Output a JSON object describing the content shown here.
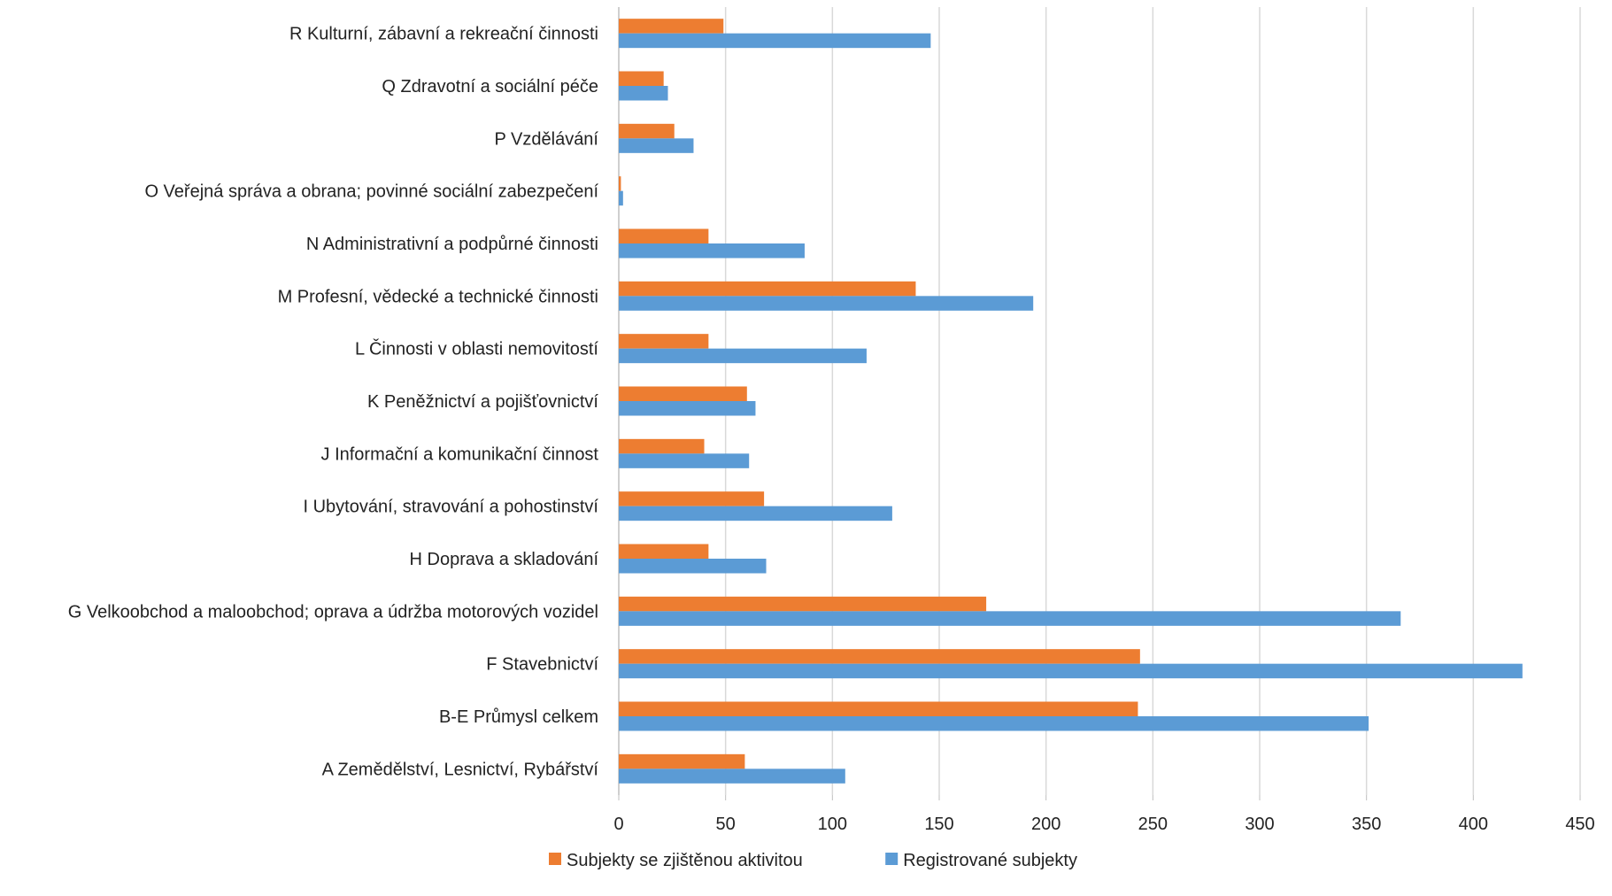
{
  "chart_data": {
    "type": "bar",
    "orientation": "horizontal",
    "categories": [
      "R Kulturní, zábavní a rekreační činnosti",
      "Q Zdravotní a sociální péče",
      "P Vzdělávání",
      "O Veřejná správa a obrana; povinné sociální zabezpečení",
      "N Administrativní a podpůrné činnosti",
      "M Profesní, vědecké a technické činnosti",
      "L Činnosti v oblasti nemovitostí",
      "K Peněžnictví a pojišťovnictví",
      "J Informační a komunikační činnost",
      "I Ubytování, stravování a pohostinství",
      "H Doprava a skladování",
      "G Velkoobchod a maloobchod; oprava a údržba motorových vozidel",
      "F Stavebnictví",
      "B-E Průmysl celkem",
      "A Zemědělství, Lesnictví, Rybářství"
    ],
    "series": [
      {
        "name": "Subjekty se zjištěnou aktivitou",
        "color": "#ED7D31",
        "values": [
          49,
          21,
          26,
          1,
          42,
          139,
          42,
          60,
          40,
          68,
          42,
          172,
          244,
          243,
          59
        ]
      },
      {
        "name": "Registrované subjekty",
        "color": "#5B9BD5",
        "values": [
          146,
          23,
          35,
          2,
          87,
          194,
          116,
          64,
          61,
          128,
          69,
          366,
          423,
          351,
          106
        ]
      }
    ],
    "xlim": [
      0,
      450
    ],
    "xticks": [
      "0",
      "50",
      "100",
      "150",
      "200",
      "250",
      "300",
      "350",
      "400",
      "450"
    ],
    "grid": true,
    "gridColor": "#D9D9D9",
    "legend_position": "bottom",
    "title": "",
    "xlabel": "",
    "ylabel": ""
  }
}
